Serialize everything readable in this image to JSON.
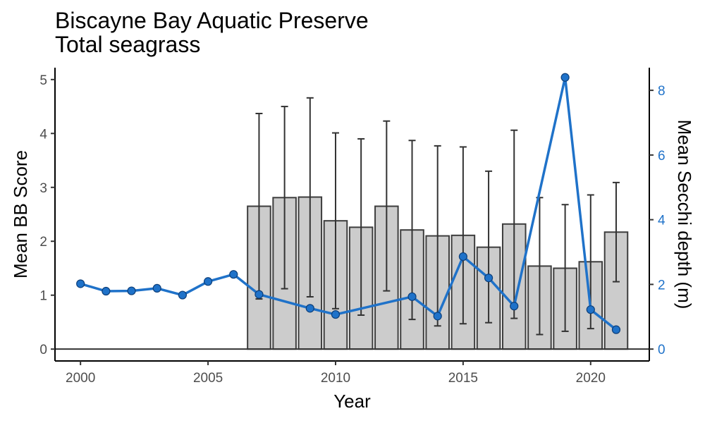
{
  "colors": {
    "bar_fill": "#cccccc",
    "bar_stroke": "#3d3d3d",
    "error_bar": "#333333",
    "secchi": "#1f72c9",
    "axis": "#000000"
  },
  "chart_data": {
    "type": "bar",
    "title": "Biscayne Bay Aquatic Preserve",
    "subtitle": "Total seagrass",
    "xlabel": "Year",
    "ylabel": "Mean BB Score",
    "y2label": "Mean Secchi depth (m)",
    "xlim": [
      1999,
      2022.3
    ],
    "ylim": [
      -0.22,
      5.22
    ],
    "y2lim": [
      -0.367,
      8.7
    ],
    "x_ticks": [
      2000,
      2005,
      2010,
      2015,
      2020
    ],
    "y_ticks": [
      0,
      1,
      2,
      3,
      4,
      5
    ],
    "y2_ticks": [
      0,
      2,
      4,
      6,
      8
    ],
    "bb_score": {
      "name": "Mean BB Score",
      "years": [
        2007,
        2008,
        2009,
        2010,
        2011,
        2012,
        2013,
        2014,
        2015,
        2016,
        2017,
        2018,
        2019,
        2020,
        2021
      ],
      "values": [
        2.65,
        2.81,
        2.82,
        2.38,
        2.26,
        2.65,
        2.21,
        2.1,
        2.11,
        1.89,
        2.32,
        1.54,
        1.5,
        1.62,
        2.17
      ],
      "err_low": [
        0.93,
        1.12,
        0.97,
        0.75,
        0.63,
        1.08,
        0.55,
        0.43,
        0.47,
        0.49,
        0.57,
        0.27,
        0.33,
        0.38,
        1.25
      ],
      "err_high": [
        4.37,
        4.5,
        4.66,
        4.01,
        3.9,
        4.23,
        3.87,
        3.77,
        3.75,
        3.3,
        4.06,
        2.81,
        2.68,
        2.86,
        3.09
      ]
    },
    "secchi": {
      "name": "Mean Secchi depth (m)",
      "years": [
        2000,
        2001,
        2002,
        2003,
        2004,
        2005,
        2006,
        2007,
        2009,
        2010,
        2013,
        2014,
        2015,
        2016,
        2017,
        2019,
        2020,
        2021
      ],
      "values": [
        2.02,
        1.79,
        1.8,
        1.88,
        1.67,
        2.09,
        2.31,
        1.69,
        1.26,
        1.07,
        1.62,
        1.02,
        2.86,
        2.2,
        1.33,
        8.4,
        1.22,
        0.6
      ]
    }
  }
}
